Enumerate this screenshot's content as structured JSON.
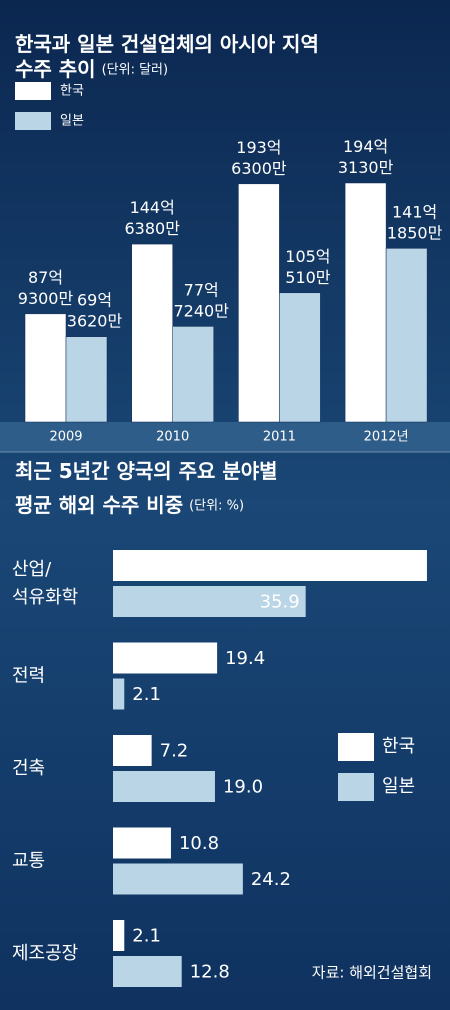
{
  "chart_data": [
    {
      "type": "bar",
      "title": "한국과 일본 건설업체의 아시아 지역\n수주 추이",
      "subtitle": "(단위: 달러)",
      "categories": [
        "2009",
        "2010",
        "2011",
        "2012년"
      ],
      "series": [
        {
          "name": "한국",
          "color": "#ffffff",
          "values": [
            87.93,
            144.638,
            193.63,
            194.313
          ],
          "value_labels": [
            "87억\n9300만",
            "144억\n6380만",
            "193억\n6300만",
            "194억\n3130만"
          ]
        },
        {
          "name": "일본",
          "color": "#b9d5e6",
          "values": [
            69.362,
            77.724,
            105.051,
            141.185
          ],
          "value_labels": [
            "69억\n3620만",
            "77억\n7240만",
            "105억\n510만",
            "141억\n1850만"
          ]
        }
      ],
      "ylim": [
        0,
        200
      ]
    },
    {
      "type": "barh",
      "title": "최근 5년간 양국의 주요 분야별\n평균 해외 수주 비중",
      "subtitle": "(단위: %)",
      "categories": [
        "산업/\n석유화학",
        "전력",
        "건축",
        "교통",
        "제조공장"
      ],
      "series": [
        {
          "name": "한국",
          "color": "#ffffff",
          "values": [
            58.5,
            19.4,
            7.2,
            10.8,
            2.1
          ]
        },
        {
          "name": "일본",
          "color": "#b9d5e6",
          "values": [
            35.9,
            2.1,
            19.0,
            24.2,
            12.8
          ],
          "value_labels": [
            "35.9",
            "2.1",
            "19.0",
            "24.2",
            "12.8"
          ]
        }
      ],
      "xlim": [
        0,
        60
      ],
      "source": "자료: 해외건설협회"
    }
  ]
}
